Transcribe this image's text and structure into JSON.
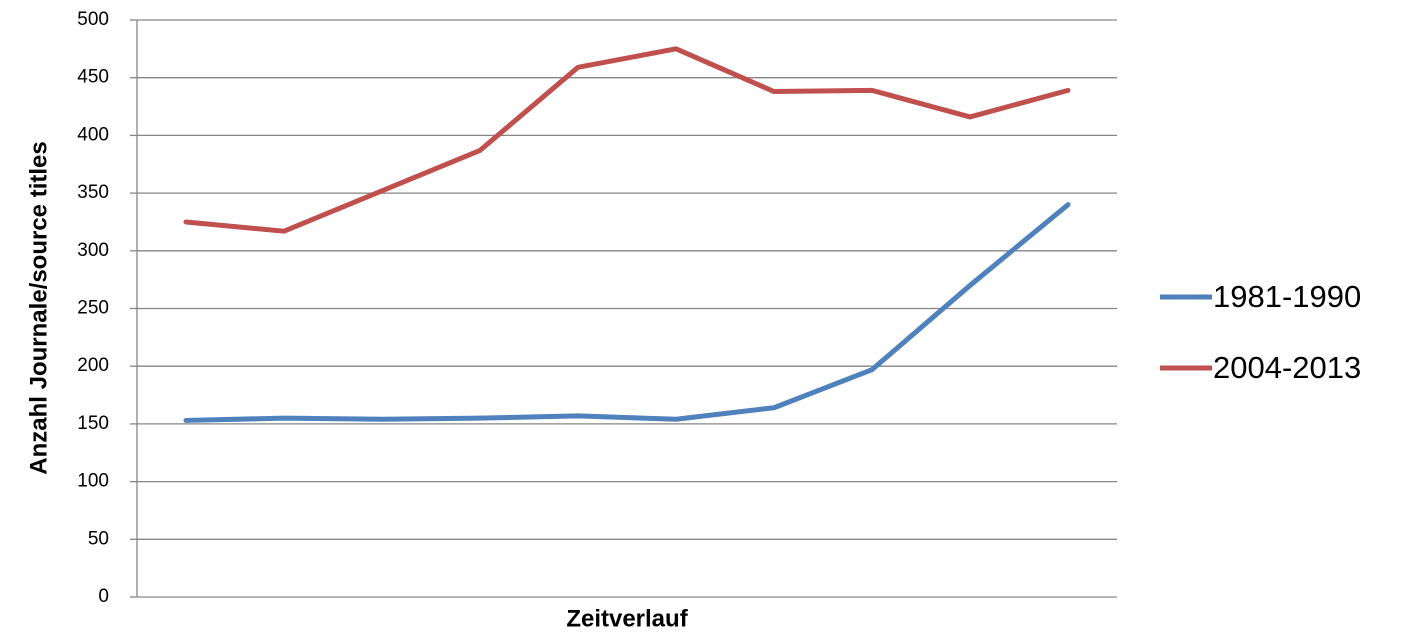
{
  "chart_data": {
    "type": "line",
    "y_label": "Anzahl Journale/source titles",
    "x_label": "Zeitverlauf",
    "categories": [
      null,
      null,
      null,
      null,
      null,
      null,
      null,
      null,
      null,
      null
    ],
    "series": [
      {
        "name": "1981-1990",
        "color": "#4f81bd",
        "values": [
          153,
          155,
          154,
          155,
          157,
          154,
          164,
          197,
          270,
          340
        ]
      },
      {
        "name": "2004-2013",
        "color": "#c0504d",
        "values": [
          325,
          317,
          352,
          387,
          459,
          475,
          438,
          439,
          416,
          439
        ]
      }
    ],
    "ylim": [
      0,
      500
    ],
    "yticks": [
      0,
      50,
      100,
      150,
      200,
      250,
      300,
      350,
      400,
      450,
      500
    ],
    "grid": true,
    "legend": "right"
  }
}
